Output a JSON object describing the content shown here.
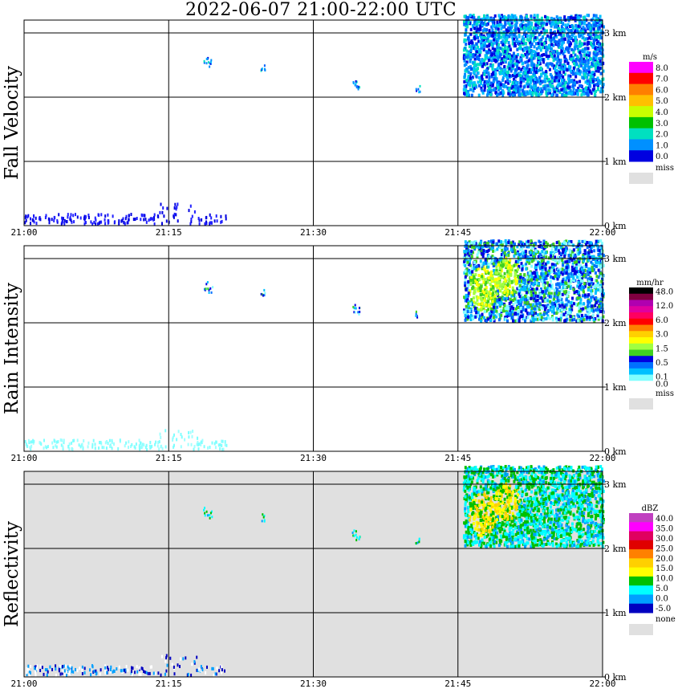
{
  "title": "2022-06-07  21:00-22:00 UTC",
  "x_ticks": [
    "21:00",
    "21:15",
    "21:30",
    "21:45",
    "22:00"
  ],
  "y_ticks": [
    "0 km",
    "1 km",
    "2 km",
    "3 km"
  ],
  "chart_data": [
    {
      "type": "heatmap",
      "title": "",
      "ylabel": "Fall Velocity",
      "xlim": [
        "21:00",
        "22:00"
      ],
      "ylim": [
        0,
        3.5
      ],
      "grid": true,
      "legend_placement": "right",
      "colorbar": {
        "unit": "m/s",
        "labels": [
          "8.0",
          "7.0",
          "6.0",
          "5.0",
          "4.0",
          "3.0",
          "2.0",
          "1.0",
          "0.0"
        ],
        "colors": [
          "#ff00ff",
          "#ff0000",
          "#ff7f00",
          "#ffc000",
          "#c8ff00",
          "#00c000",
          "#00e0c0",
          "#0090ff",
          "#0000e0"
        ],
        "missing_label": "miss",
        "missing_color": "#e0e0e0"
      },
      "regions": [
        {
          "t0": 45.5,
          "t1": 60,
          "h0": 2.1,
          "h1": 3.3,
          "level": "1.0-3.0"
        },
        {
          "t0": 14.5,
          "t1": 17.5,
          "h0": 0.0,
          "h1": 0.35,
          "level": "0.0-1.0"
        },
        {
          "t0": 0.0,
          "t1": 9.0,
          "h0": 0.0,
          "h1": 0.2,
          "level": "0.0-1.0"
        }
      ]
    },
    {
      "type": "heatmap",
      "title": "",
      "ylabel": "Rain Intensity",
      "xlim": [
        "21:00",
        "22:00"
      ],
      "ylim": [
        0,
        3.5
      ],
      "grid": true,
      "legend_placement": "right",
      "colorbar": {
        "unit": "mm/hr",
        "labels": [
          "48.0",
          "",
          "12.0",
          "",
          "6.0",
          "",
          "3.0",
          "",
          "1.5",
          "",
          "0.5",
          "",
          "0.1",
          "0.0"
        ],
        "colors": [
          "#000000",
          "#800040",
          "#b000b0",
          "#e000a0",
          "#ff0060",
          "#ff0000",
          "#ff8000",
          "#ffd000",
          "#ffff00",
          "#a0ff40",
          "#40d020",
          "#0000e0",
          "#0070ff",
          "#00c0ff",
          "#80ffff",
          "#ffffff"
        ],
        "missing_label": "miss",
        "missing_color": "#e0e0e0"
      },
      "regions": [
        {
          "t0": 45.5,
          "t1": 60,
          "h0": 2.0,
          "h1": 3.3,
          "level": "0.5-1.5"
        },
        {
          "t0": 0.0,
          "t1": 17.0,
          "h0": 0.0,
          "h1": 0.25,
          "level": "0.0-0.1"
        }
      ]
    },
    {
      "type": "heatmap",
      "title": "",
      "ylabel": "Reflectivity",
      "xlim": [
        "21:00",
        "22:00"
      ],
      "ylim": [
        0,
        3.5
      ],
      "grid": true,
      "legend_placement": "right",
      "colorbar": {
        "unit": "dBZ",
        "labels": [
          "40.0",
          "35.0",
          "30.0",
          "25.0",
          "20.0",
          "15.0",
          "10.0",
          "5.0",
          "0.0",
          "-5.0"
        ],
        "colors": [
          "#c040c0",
          "#ff00ff",
          "#e00060",
          "#e00000",
          "#ff8000",
          "#ffd000",
          "#ffff00",
          "#00c000",
          "#00ffff",
          "#00a0ff",
          "#0000c0"
        ],
        "missing_label": "none",
        "missing_color": "#e0e0e0"
      },
      "regions": [
        {
          "t0": 45.5,
          "t1": 60,
          "h0": 2.0,
          "h1": 3.3,
          "level": "5.0-20.0"
        },
        {
          "t0": 0.0,
          "t1": 17.0,
          "h0": 0.0,
          "h1": 0.25,
          "level": "-5.0-5.0"
        }
      ]
    }
  ]
}
